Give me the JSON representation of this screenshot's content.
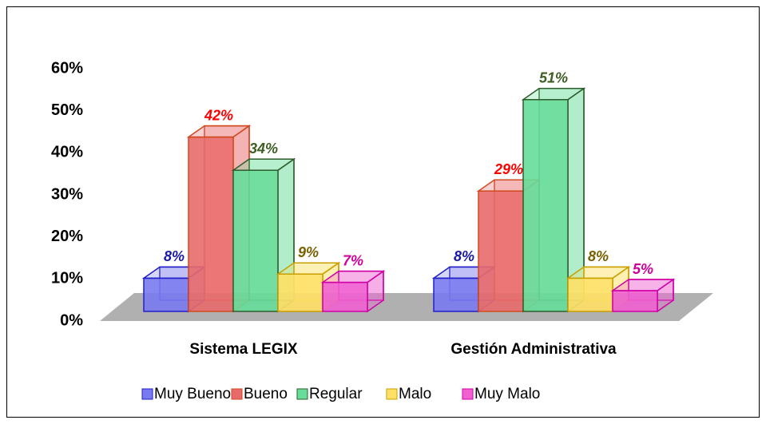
{
  "chart_data": {
    "type": "bar3d",
    "categories": [
      "Sistema LEGIX",
      "Gestión Administrativa"
    ],
    "series": [
      {
        "name": "Muy Bueno",
        "color": "#7a7af0",
        "values": [
          8,
          8
        ],
        "value_labels": [
          "8%",
          "8%"
        ]
      },
      {
        "name": "Bueno",
        "color": "#e86a6a",
        "values": [
          42,
          29
        ],
        "value_labels": [
          "42%",
          "29%"
        ]
      },
      {
        "name": "Regular",
        "color": "#66dd99",
        "values": [
          34,
          51
        ],
        "value_labels": [
          "34%",
          "51%"
        ]
      },
      {
        "name": "Malo",
        "color": "#ffe066",
        "values": [
          9,
          8
        ],
        "value_labels": [
          "9%",
          "8%"
        ]
      },
      {
        "name": "Muy Malo",
        "color": "#f060d0",
        "values": [
          7,
          5
        ],
        "value_labels": [
          "7%",
          "5%"
        ]
      }
    ],
    "ylim": [
      0,
      60
    ],
    "yticks": [
      {
        "value": 0,
        "label": "0%"
      },
      {
        "value": 10,
        "label": "10%"
      },
      {
        "value": 20,
        "label": "20%"
      },
      {
        "value": 30,
        "label": "30%"
      },
      {
        "value": 40,
        "label": "40%"
      },
      {
        "value": 50,
        "label": "50%"
      },
      {
        "value": 60,
        "label": "60%"
      }
    ],
    "legend": "bottom"
  }
}
